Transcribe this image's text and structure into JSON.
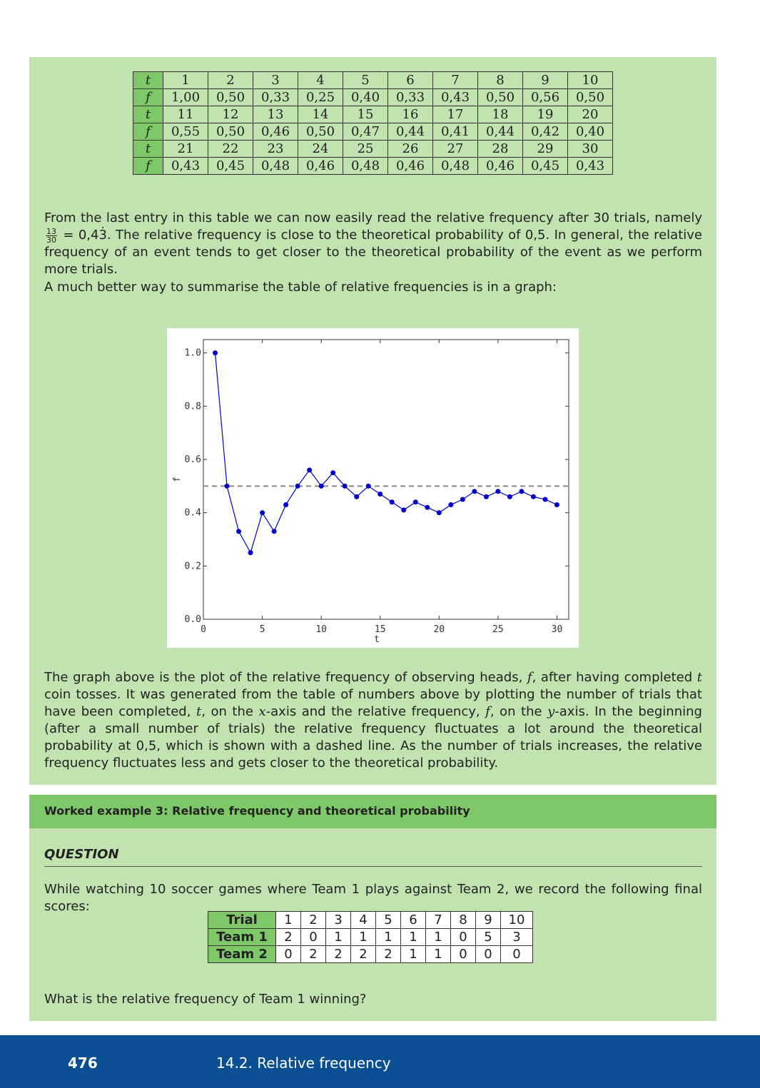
{
  "freq_table": {
    "rows": [
      {
        "head": "t",
        "cells": [
          "1",
          "2",
          "3",
          "4",
          "5",
          "6",
          "7",
          "8",
          "9",
          "10"
        ]
      },
      {
        "head": "f",
        "cells": [
          "1,00",
          "0,50",
          "0,33",
          "0,25",
          "0,40",
          "0,33",
          "0,43",
          "0,50",
          "0,56",
          "0,50"
        ]
      },
      {
        "head": "t",
        "cells": [
          "11",
          "12",
          "13",
          "14",
          "15",
          "16",
          "17",
          "18",
          "19",
          "20"
        ]
      },
      {
        "head": "f",
        "cells": [
          "0,55",
          "0,50",
          "0,46",
          "0,50",
          "0,47",
          "0,44",
          "0,41",
          "0,44",
          "0,42",
          "0,40"
        ]
      },
      {
        "head": "t",
        "cells": [
          "21",
          "22",
          "23",
          "24",
          "25",
          "26",
          "27",
          "28",
          "29",
          "30"
        ]
      },
      {
        "head": "f",
        "cells": [
          "0,43",
          "0,45",
          "0,48",
          "0,46",
          "0,48",
          "0,46",
          "0,48",
          "0,46",
          "0,45",
          "0,43"
        ]
      }
    ]
  },
  "para1": {
    "text_a": "From the last entry in this table we can now easily read the relative frequency after 30 trials, namely",
    "frac_num": "13",
    "frac_den": "30",
    "text_b": "= 0,43̇.",
    "text_c": "The relative frequency is close to the theoretical probability of 0,5. In general, the relative frequency of an event tends to get closer to the theoretical probability of the event as we perform more trials."
  },
  "para2": "A much better way to summarise the table of relative frequencies is in a graph:",
  "chart_data": {
    "type": "line",
    "x": [
      1,
      2,
      3,
      4,
      5,
      6,
      7,
      8,
      9,
      10,
      11,
      12,
      13,
      14,
      15,
      16,
      17,
      18,
      19,
      20,
      21,
      22,
      23,
      24,
      25,
      26,
      27,
      28,
      29,
      30
    ],
    "series": [
      {
        "values": [
          1.0,
          0.5,
          0.33,
          0.25,
          0.4,
          0.33,
          0.43,
          0.5,
          0.56,
          0.5,
          0.55,
          0.5,
          0.46,
          0.5,
          0.47,
          0.44,
          0.41,
          0.44,
          0.42,
          0.4,
          0.43,
          0.45,
          0.48,
          0.46,
          0.48,
          0.46,
          0.48,
          0.46,
          0.45,
          0.43
        ],
        "color": "#0000cc"
      }
    ],
    "reference_line": {
      "y": 0.5,
      "style": "dashed",
      "color": "#888888"
    },
    "xlabel": "t",
    "ylabel": "f",
    "xlim": [
      0,
      31
    ],
    "ylim": [
      0,
      1.05
    ],
    "xticks": [
      "0",
      "5",
      "10",
      "15",
      "20",
      "25",
      "30"
    ],
    "yticks": [
      "0.0",
      "0.2",
      "0.4",
      "0.6",
      "0.8",
      "1.0"
    ],
    "grid": false
  },
  "para3": {
    "s1": "The graph above is the plot of the relative frequency of observing heads,",
    "v_f": "f",
    "s2": ", after having completed",
    "v_t": "t",
    "s3": "coin tosses. It was generated from the table of numbers above by plotting the number of trials that have been completed,",
    "v_t2": "t",
    "s4": ", on the",
    "v_x": "x",
    "s5": "-axis and the relative frequency,",
    "v_f2": "f",
    "s6": ", on the",
    "v_y": "y",
    "s7": "-axis. In the beginning (after a small number of trials) the relative frequency fluctuates a lot around the theoretical probability at 0,5, which is shown with a dashed line. As the number of trials increases, the relative frequency fluctuates less and gets closer to the theoretical probability."
  },
  "worked_example": {
    "title": "Worked example 3: Relative frequency and theoretical probability",
    "question_label": "QUESTION",
    "question_text": "While watching 10 soccer games where Team 1 plays against Team 2, we record the following final scores:",
    "scores": {
      "rows": [
        {
          "head": "Trial",
          "cells": [
            "1",
            "2",
            "3",
            "4",
            "5",
            "6",
            "7",
            "8",
            "9",
            "10"
          ]
        },
        {
          "head": "Team 1",
          "cells": [
            "2",
            "0",
            "1",
            "1",
            "1",
            "1",
            "1",
            "0",
            "5",
            "3"
          ]
        },
        {
          "head": "Team 2",
          "cells": [
            "0",
            "2",
            "2",
            "2",
            "2",
            "1",
            "1",
            "0",
            "0",
            "0"
          ]
        }
      ]
    },
    "prompt": "What is the relative frequency of Team 1 winning?"
  },
  "footer": {
    "page_number": "476",
    "section": "14.2.   Relative frequency"
  }
}
